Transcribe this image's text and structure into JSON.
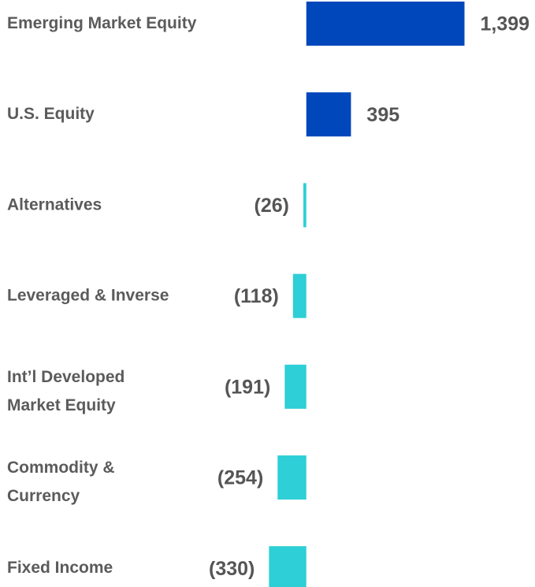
{
  "chart_data": {
    "type": "hbar",
    "categories": [
      "Emerging Market Equity",
      "U.S.  Equity",
      "Alternatives",
      "Leveraged & Inverse",
      "Int’l Developed\nMarket Equity",
      "Commodity &\nCurrency",
      "Fixed Income"
    ],
    "values": [
      1399,
      395,
      -26,
      -118,
      -191,
      -254,
      -330
    ],
    "value_labels": [
      "1,399",
      "395",
      "(26)",
      "(118)",
      "(191)",
      "(254)",
      "(330)"
    ],
    "color_positive": "#0047bb",
    "color_negative": "#2ecfd6",
    "xlim": [
      -500,
      1500
    ]
  }
}
